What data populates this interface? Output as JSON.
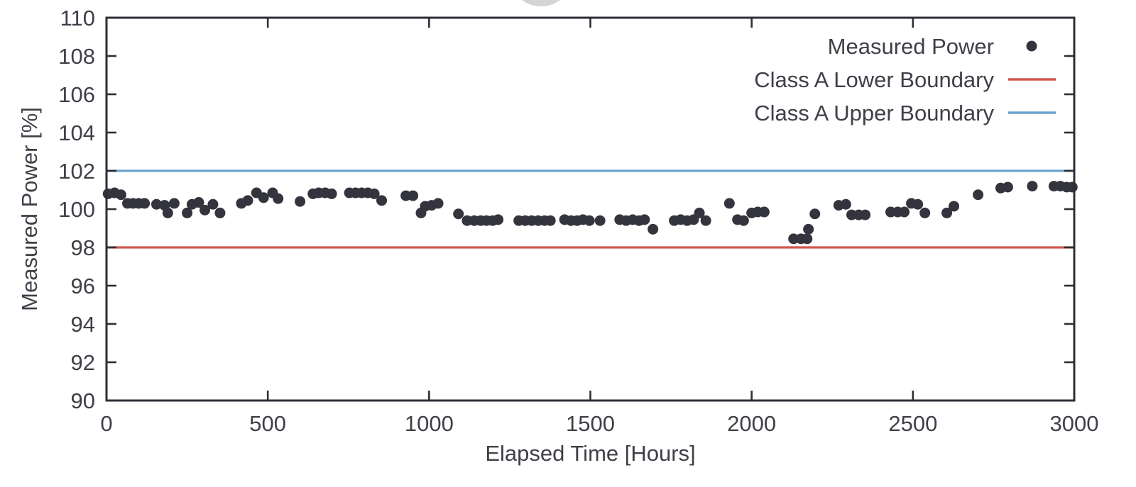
{
  "figure": {
    "background": "#ffffff",
    "watermark": "partial-gray-circle-top-center"
  },
  "colors": {
    "axis": "#2e2e36",
    "text": "#3f3f48",
    "scatter_dot": "#34343e",
    "lower_boundary": "#d0584f",
    "upper_boundary": "#6ba3cd",
    "watermark_gray": "#cdcdcd"
  },
  "chart_data": {
    "type": "scatter",
    "title": "",
    "xlabel": "Elapsed Time [Hours]",
    "ylabel": "Measured Power [%]",
    "xlim": [
      0,
      3000
    ],
    "ylim": [
      90,
      110
    ],
    "xticks": [
      0,
      500,
      1000,
      1500,
      2000,
      2500,
      3000
    ],
    "yticks": [
      90,
      92,
      94,
      96,
      98,
      100,
      102,
      104,
      106,
      108,
      110
    ],
    "grid": false,
    "legend_position": "top-right-inside",
    "series": [
      {
        "name": "Measured Power",
        "type": "scatter",
        "marker": "circle",
        "color": "#34343e",
        "points": [
          [
            5,
            100.8
          ],
          [
            25,
            100.85
          ],
          [
            45,
            100.75
          ],
          [
            65,
            100.3
          ],
          [
            82,
            100.3
          ],
          [
            100,
            100.3
          ],
          [
            118,
            100.3
          ],
          [
            155,
            100.25
          ],
          [
            180,
            100.2
          ],
          [
            190,
            99.8
          ],
          [
            210,
            100.3
          ],
          [
            250,
            99.8
          ],
          [
            265,
            100.25
          ],
          [
            286,
            100.35
          ],
          [
            305,
            99.95
          ],
          [
            330,
            100.25
          ],
          [
            352,
            99.8
          ],
          [
            418,
            100.3
          ],
          [
            438,
            100.45
          ],
          [
            465,
            100.85
          ],
          [
            487,
            100.6
          ],
          [
            515,
            100.85
          ],
          [
            532,
            100.55
          ],
          [
            600,
            100.4
          ],
          [
            640,
            100.8
          ],
          [
            658,
            100.85
          ],
          [
            678,
            100.85
          ],
          [
            698,
            100.8
          ],
          [
            753,
            100.85
          ],
          [
            772,
            100.85
          ],
          [
            791,
            100.85
          ],
          [
            810,
            100.85
          ],
          [
            830,
            100.8
          ],
          [
            853,
            100.45
          ],
          [
            928,
            100.7
          ],
          [
            950,
            100.7
          ],
          [
            975,
            99.8
          ],
          [
            988,
            100.15
          ],
          [
            1008,
            100.2
          ],
          [
            1028,
            100.3
          ],
          [
            1091,
            99.75
          ],
          [
            1118,
            99.4
          ],
          [
            1140,
            99.4
          ],
          [
            1160,
            99.4
          ],
          [
            1178,
            99.4
          ],
          [
            1197,
            99.4
          ],
          [
            1214,
            99.45
          ],
          [
            1278,
            99.4
          ],
          [
            1298,
            99.4
          ],
          [
            1318,
            99.4
          ],
          [
            1338,
            99.4
          ],
          [
            1358,
            99.4
          ],
          [
            1376,
            99.4
          ],
          [
            1420,
            99.45
          ],
          [
            1440,
            99.4
          ],
          [
            1459,
            99.4
          ],
          [
            1477,
            99.45
          ],
          [
            1497,
            99.4
          ],
          [
            1530,
            99.4
          ],
          [
            1591,
            99.45
          ],
          [
            1611,
            99.4
          ],
          [
            1631,
            99.45
          ],
          [
            1651,
            99.4
          ],
          [
            1668,
            99.45
          ],
          [
            1694,
            98.95
          ],
          [
            1760,
            99.4
          ],
          [
            1780,
            99.45
          ],
          [
            1800,
            99.4
          ],
          [
            1820,
            99.45
          ],
          [
            1838,
            99.8
          ],
          [
            1858,
            99.4
          ],
          [
            1931,
            100.3
          ],
          [
            1956,
            99.45
          ],
          [
            1975,
            99.4
          ],
          [
            2000,
            99.8
          ],
          [
            2019,
            99.85
          ],
          [
            2039,
            99.85
          ],
          [
            2130,
            98.45
          ],
          [
            2153,
            98.45
          ],
          [
            2172,
            98.45
          ],
          [
            2176,
            98.95
          ],
          [
            2196,
            99.75
          ],
          [
            2270,
            100.2
          ],
          [
            2292,
            100.25
          ],
          [
            2310,
            99.7
          ],
          [
            2332,
            99.7
          ],
          [
            2352,
            99.7
          ],
          [
            2431,
            99.85
          ],
          [
            2453,
            99.85
          ],
          [
            2473,
            99.85
          ],
          [
            2495,
            100.3
          ],
          [
            2515,
            100.25
          ],
          [
            2537,
            99.8
          ],
          [
            2605,
            99.8
          ],
          [
            2627,
            100.15
          ],
          [
            2702,
            100.75
          ],
          [
            2772,
            101.1
          ],
          [
            2794,
            101.15
          ],
          [
            2870,
            101.2
          ],
          [
            2937,
            101.2
          ],
          [
            2957,
            101.2
          ],
          [
            2977,
            101.15
          ],
          [
            2994,
            101.15
          ]
        ]
      },
      {
        "name": "Class A Lower Boundary",
        "type": "hline",
        "color": "#d0584f",
        "y": 98
      },
      {
        "name": "Class A Upper Boundary",
        "type": "hline",
        "color": "#6ba3cd",
        "y": 102
      }
    ]
  }
}
